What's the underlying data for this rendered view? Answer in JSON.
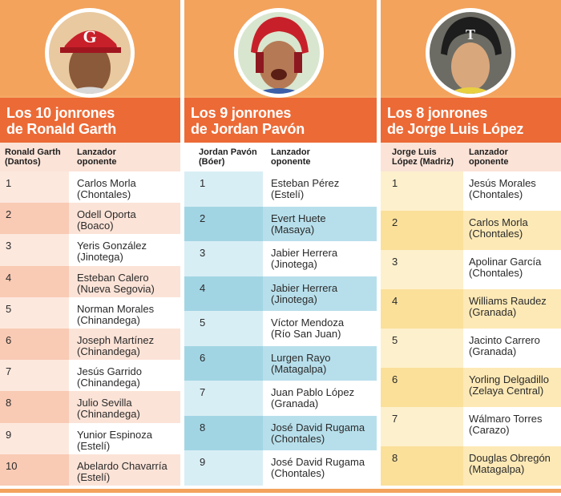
{
  "colors": {
    "header_orange": "#f3a35c",
    "title_orange": "#ec6a36",
    "panel1_accent": "#f9cab4",
    "panel2_accent": "#a2d5e4",
    "panel3_accent": "#fbe09a"
  },
  "panels": [
    {
      "title_line1": "Los 10 jonrones",
      "title_line2": "de Ronald Garth",
      "col1_line1": "Ronald Garth",
      "col1_line2": "(Dantos)",
      "col2_line1": "Lanzador",
      "col2_line2": "oponente",
      "rows": [
        {
          "num": "1",
          "name": "Carlos Morla",
          "team": "(Chontales)"
        },
        {
          "num": "2",
          "name": "Odell Oporta",
          "team": "(Boaco)"
        },
        {
          "num": "3",
          "name": "Yeris González",
          "team": "(Jinotega)"
        },
        {
          "num": "4",
          "name": "Esteban Calero",
          "team": "(Nueva Segovia)"
        },
        {
          "num": "5",
          "name": "Norman Morales",
          "team": "(Chinandega)"
        },
        {
          "num": "6",
          "name": "Joseph Martínez",
          "team": "(Chinandega)"
        },
        {
          "num": "7",
          "name": "Jesús Garrido",
          "team": "(Chinandega)"
        },
        {
          "num": "8",
          "name": "Julio Sevilla",
          "team": "(Chinandega)"
        },
        {
          "num": "9",
          "name": "Yunior Espinoza",
          "team": "(Estelí)"
        },
        {
          "num": "10",
          "name": "Abelardo Chavarría",
          "team": "(Estelí)"
        }
      ]
    },
    {
      "title_line1": "Los 9 jonrones",
      "title_line2": "de Jordan Pavón",
      "col1_line1": "Jordan Pavón",
      "col1_line2": "(Bóer)",
      "col2_line1": "Lanzador",
      "col2_line2": "oponente",
      "rows": [
        {
          "num": "1",
          "name": "Esteban Pérez",
          "team": "(Estelí)"
        },
        {
          "num": "2",
          "name": "Evert Huete",
          "team": "(Masaya)"
        },
        {
          "num": "3",
          "name": "Jabier Herrera",
          "team": " (Jinotega)"
        },
        {
          "num": "4",
          "name": "Jabier Herrera",
          "team": "(Jinotega)"
        },
        {
          "num": "5",
          "name": "Víctor Mendoza",
          "team": "(Río San Juan)"
        },
        {
          "num": "6",
          "name": "Lurgen Rayo",
          "team": "(Matagalpa)"
        },
        {
          "num": "7",
          "name": "Juan Pablo López",
          "team": "(Granada)"
        },
        {
          "num": "8",
          "name": "José David Rugama",
          "team": "(Chontales)"
        },
        {
          "num": "9",
          "name": "José David Rugama",
          "team": "(Chontales)"
        }
      ]
    },
    {
      "title_line1": "Los 8 jonrones",
      "title_line2": "de Jorge Luis López",
      "col1_line1": "Jorge Luis",
      "col1_line2": "López (Madriz)",
      "col2_line1": "Lanzador",
      "col2_line2": "oponente",
      "rows": [
        {
          "num": "1",
          "name": "Jesús Morales",
          "team": "(Chontales)"
        },
        {
          "num": "2",
          "name": "Carlos Morla",
          "team": "(Chontales)"
        },
        {
          "num": "3",
          "name": "Apolinar García",
          "team": "(Chontales)"
        },
        {
          "num": "4",
          "name": "Williams Raudez",
          "team": "(Granada)"
        },
        {
          "num": "5",
          "name": "Jacinto Carrero",
          "team": "(Granada)"
        },
        {
          "num": "6",
          "name": "Yorling Delgadillo",
          "team": "(Zelaya Central)"
        },
        {
          "num": "7",
          "name": "Wálmaro Torres",
          "team": "(Carazo)"
        },
        {
          "num": "8",
          "name": "Douglas Obregón",
          "team": "(Matagalpa)"
        }
      ]
    }
  ]
}
